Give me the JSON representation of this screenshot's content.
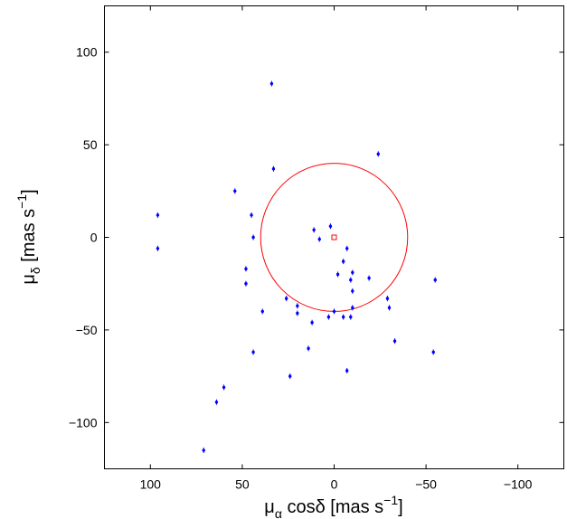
{
  "chart_data": {
    "type": "scatter",
    "xlabel": {
      "base": "μ",
      "sub": "α",
      "rest": " cosδ [mas s",
      "sup": "−1",
      "close": "]"
    },
    "ylabel": {
      "base": "μ",
      "sub": "δ",
      "rest": " [mas s",
      "sup": "−1",
      "close": "]"
    },
    "xlim": [
      125,
      -125
    ],
    "ylim": [
      -125,
      125
    ],
    "x_reversed": true,
    "grid": false,
    "box": true,
    "xticks": [
      100,
      50,
      0,
      -50,
      -100
    ],
    "xtick_labels": [
      "100",
      "50",
      "0",
      "−50",
      "−100"
    ],
    "yticks": [
      100,
      50,
      0,
      -50,
      -100
    ],
    "ytick_labels": [
      "100",
      "50",
      "0",
      "−50",
      "−100"
    ],
    "point_color": "#0000ff",
    "circle_color": "#ff0000",
    "circle": {
      "center": [
        0,
        0
      ],
      "radius": 40
    },
    "center_marker": {
      "x": 0,
      "y": 0,
      "shape": "square"
    },
    "points": [
      {
        "x": 34,
        "y": 83
      },
      {
        "x": 33,
        "y": 37
      },
      {
        "x": -24,
        "y": 45
      },
      {
        "x": 54,
        "y": 25
      },
      {
        "x": 96,
        "y": 12
      },
      {
        "x": 45,
        "y": 12
      },
      {
        "x": 11,
        "y": 4
      },
      {
        "x": 2,
        "y": 6
      },
      {
        "x": 8,
        "y": -1
      },
      {
        "x": 96,
        "y": -6
      },
      {
        "x": 44,
        "y": 0
      },
      {
        "x": -7,
        "y": -6
      },
      {
        "x": -5,
        "y": -13
      },
      {
        "x": 48,
        "y": -17
      },
      {
        "x": -10,
        "y": -19
      },
      {
        "x": -2,
        "y": -20
      },
      {
        "x": -19,
        "y": -22
      },
      {
        "x": -9,
        "y": -23
      },
      {
        "x": -55,
        "y": -23
      },
      {
        "x": 48,
        "y": -25
      },
      {
        "x": -10,
        "y": -29
      },
      {
        "x": 26,
        "y": -33
      },
      {
        "x": -29,
        "y": -33
      },
      {
        "x": 20,
        "y": -37
      },
      {
        "x": -30,
        "y": -38
      },
      {
        "x": -10,
        "y": -38
      },
      {
        "x": 39,
        "y": -40
      },
      {
        "x": 0,
        "y": -40
      },
      {
        "x": 20,
        "y": -41
      },
      {
        "x": 3,
        "y": -43
      },
      {
        "x": -5,
        "y": -43
      },
      {
        "x": -9,
        "y": -43
      },
      {
        "x": 12,
        "y": -46
      },
      {
        "x": -33,
        "y": -56
      },
      {
        "x": 14,
        "y": -60
      },
      {
        "x": 44,
        "y": -62
      },
      {
        "x": -54,
        "y": -62
      },
      {
        "x": -7,
        "y": -72
      },
      {
        "x": 24,
        "y": -75
      },
      {
        "x": 60,
        "y": -81
      },
      {
        "x": 64,
        "y": -89
      },
      {
        "x": 71,
        "y": -115
      }
    ]
  }
}
